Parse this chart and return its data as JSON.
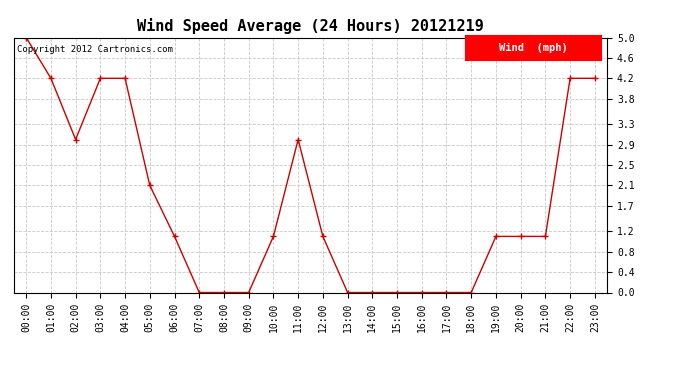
{
  "title": "Wind Speed Average (24 Hours) 20121219",
  "copyright_text": "Copyright 2012 Cartronics.com",
  "legend_label": "Wind  (mph)",
  "background_color": "#ffffff",
  "plot_bg_color": "#ffffff",
  "grid_color": "#c8c8c8",
  "line_color": "#cc0000",
  "marker_color": "#cc0000",
  "hours": [
    "00:00",
    "01:00",
    "02:00",
    "03:00",
    "04:00",
    "05:00",
    "06:00",
    "07:00",
    "08:00",
    "09:00",
    "10:00",
    "11:00",
    "12:00",
    "13:00",
    "14:00",
    "15:00",
    "16:00",
    "17:00",
    "18:00",
    "19:00",
    "20:00",
    "21:00",
    "22:00",
    "23:00"
  ],
  "values": [
    5.0,
    4.2,
    3.0,
    4.2,
    4.2,
    2.1,
    1.1,
    0.0,
    0.0,
    0.0,
    1.1,
    3.0,
    1.1,
    0.0,
    0.0,
    0.0,
    0.0,
    0.0,
    0.0,
    1.1,
    1.1,
    1.1,
    4.2,
    4.2
  ],
  "ylim": [
    0.0,
    5.0
  ],
  "yticks": [
    0.0,
    0.4,
    0.8,
    1.2,
    1.7,
    2.1,
    2.5,
    2.9,
    3.3,
    3.8,
    4.2,
    4.6,
    5.0
  ],
  "title_fontsize": 11,
  "tick_fontsize": 7,
  "copyright_fontsize": 6.5,
  "legend_fontsize": 7.5
}
